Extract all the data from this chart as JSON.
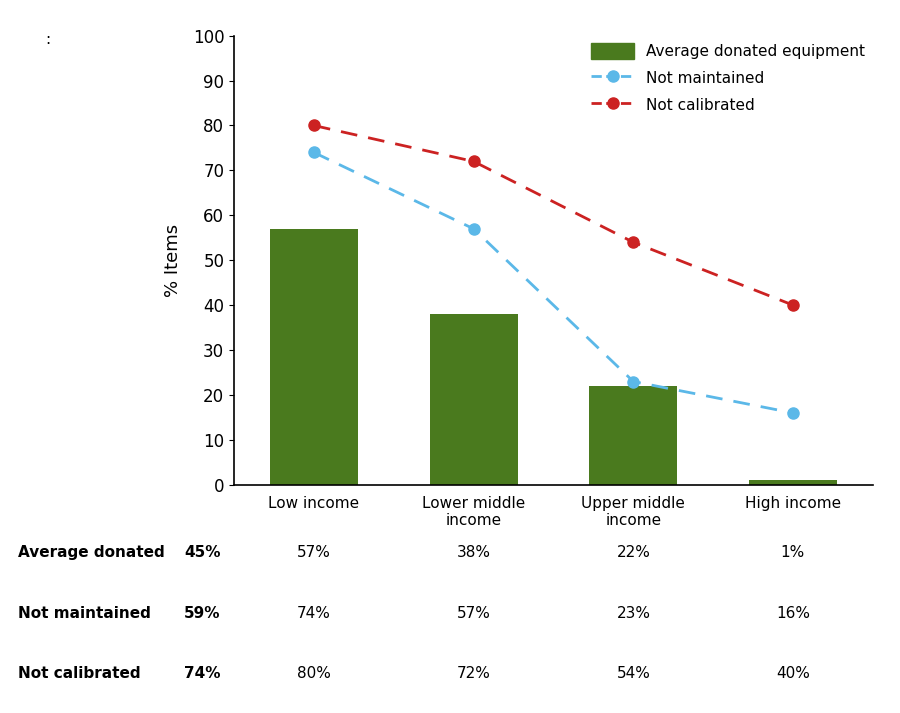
{
  "categories": [
    "Low income",
    "Lower middle\nincome",
    "Upper middle\nincome",
    "High income"
  ],
  "bar_values": [
    57,
    38,
    22,
    1
  ],
  "not_maintained": [
    74,
    57,
    23,
    16
  ],
  "not_calibrated": [
    80,
    72,
    54,
    40
  ],
  "bar_color": "#4a7a1e",
  "line_maintained_color": "#5bb8e8",
  "line_calibrated_color": "#cc2222",
  "ylabel": "% Items",
  "ylim": [
    0,
    100
  ],
  "yticks": [
    0,
    10,
    20,
    30,
    40,
    50,
    60,
    70,
    80,
    90,
    100
  ],
  "legend_labels": [
    "Average donated equipment",
    "Not maintained",
    "Not calibrated"
  ],
  "table_row_labels": [
    "Average donated",
    "Not maintained",
    "Not calibrated"
  ],
  "table_overall": [
    "45%",
    "59%",
    "74%"
  ],
  "table_low": [
    "57%",
    "74%",
    "80%"
  ],
  "table_lower_mid": [
    "38%",
    "57%",
    "72%"
  ],
  "table_upper_mid": [
    "22%",
    "23%",
    "54%"
  ],
  "table_high": [
    "1%",
    "16%",
    "40%"
  ],
  "colon_text": ":"
}
